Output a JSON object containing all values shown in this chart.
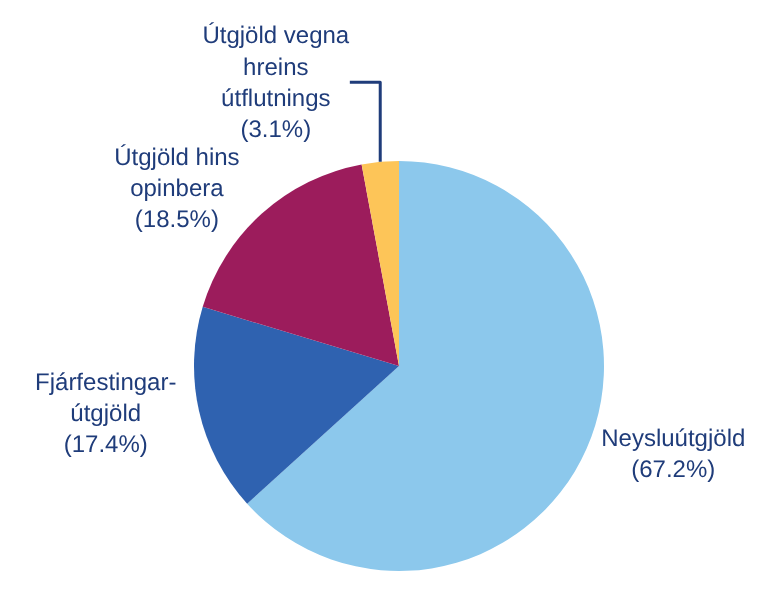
{
  "chart_data": {
    "type": "pie",
    "categories": [
      "Neysluútgjöld",
      "Fjárfestingar-útgjöld",
      "Útgjöld hins opinbera",
      "Útgjöld vegna hreins útflutnings"
    ],
    "values": [
      67.2,
      17.4,
      18.5,
      3.1
    ],
    "value_labels": [
      "(67.2%)",
      "(17.4%)",
      "(18.5%)",
      "(3.1%)"
    ],
    "colors": [
      "#8cc8ec",
      "#2f62b0",
      "#9c1c5c",
      "#fdc558"
    ],
    "legend": false
  }
}
